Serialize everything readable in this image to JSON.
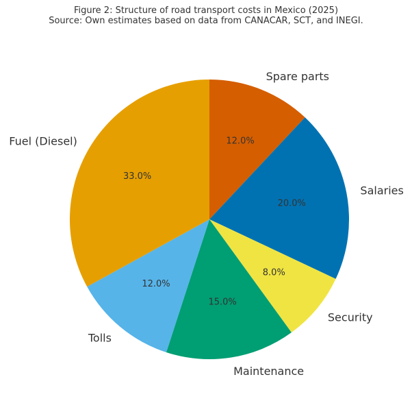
{
  "chart_data": {
    "type": "pie",
    "title": "Figure 2: Structure of road transport costs in Mexico (2025)",
    "subtitle": "Source: Own estimates based on data from CANACAR, SCT, and INEGI.",
    "slices": [
      {
        "label": "Spare parts",
        "value": 12.0,
        "value_label": "12.0%",
        "color": "#D55E00"
      },
      {
        "label": "Salaries",
        "value": 20.0,
        "value_label": "20.0%",
        "color": "#0072B2"
      },
      {
        "label": "Security",
        "value": 8.0,
        "value_label": "8.0%",
        "color": "#F0E442"
      },
      {
        "label": "Maintenance",
        "value": 15.0,
        "value_label": "15.0%",
        "color": "#009E73"
      },
      {
        "label": "Tolls",
        "value": 12.0,
        "value_label": "12.0%",
        "color": "#56B4E9"
      },
      {
        "label": "Fuel (Diesel)",
        "value": 33.0,
        "value_label": "33.0%",
        "color": "#E69F00"
      }
    ],
    "start_angle": "top",
    "direction": "clockwise",
    "legend": "none"
  }
}
